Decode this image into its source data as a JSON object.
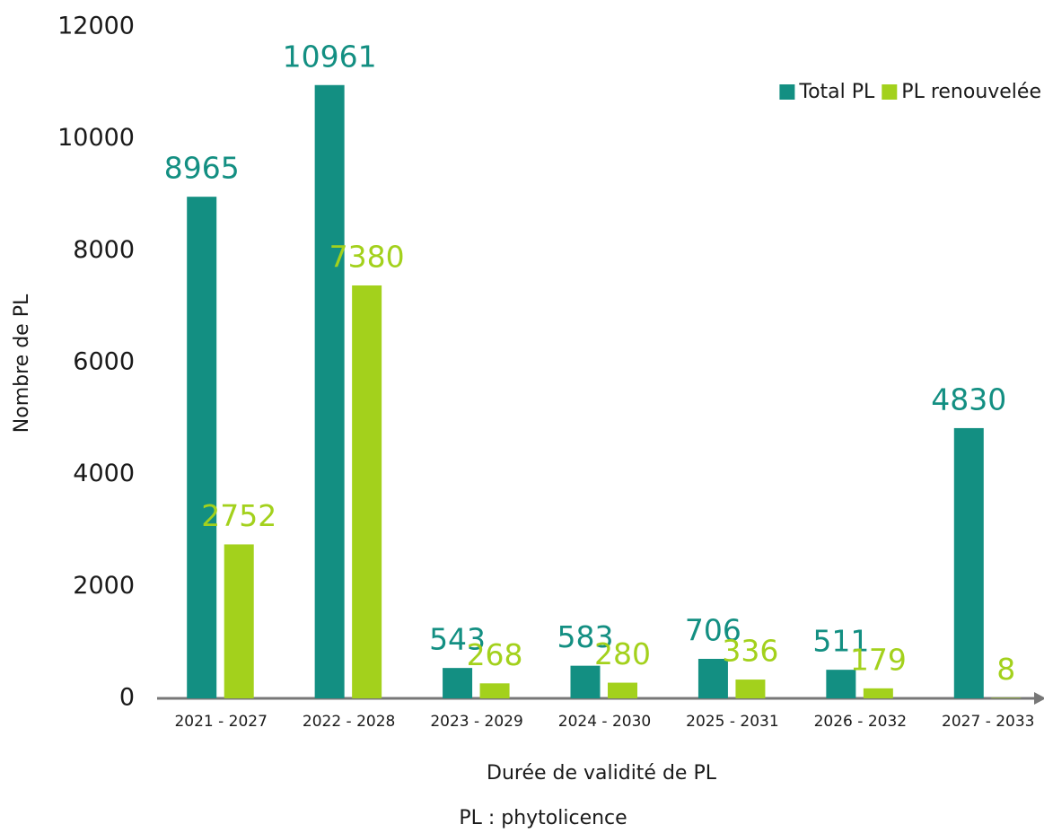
{
  "chart_data": {
    "type": "bar",
    "y_label": "Nombre de PL",
    "x_label": "Durée de validité de PL",
    "note": "PL : phytolicence",
    "categories": [
      "2021 - 2027",
      "2022 - 2028",
      "2023 - 2029",
      "2024 - 2030",
      "2025 - 2031",
      "2026 - 2032",
      "2027 - 2033"
    ],
    "series": [
      {
        "name": "Total PL",
        "color": "#138f82",
        "values": [
          8965,
          10961,
          543,
          583,
          706,
          511,
          4830
        ]
      },
      {
        "name": "PL renouvelée",
        "color": "#a3d11c",
        "values": [
          2752,
          7380,
          268,
          280,
          336,
          179,
          8
        ]
      }
    ],
    "ylim": [
      0,
      12000
    ],
    "yticks": [
      0,
      2000,
      4000,
      6000,
      8000,
      10000,
      12000
    ],
    "grid": false,
    "legend": "upper right"
  }
}
